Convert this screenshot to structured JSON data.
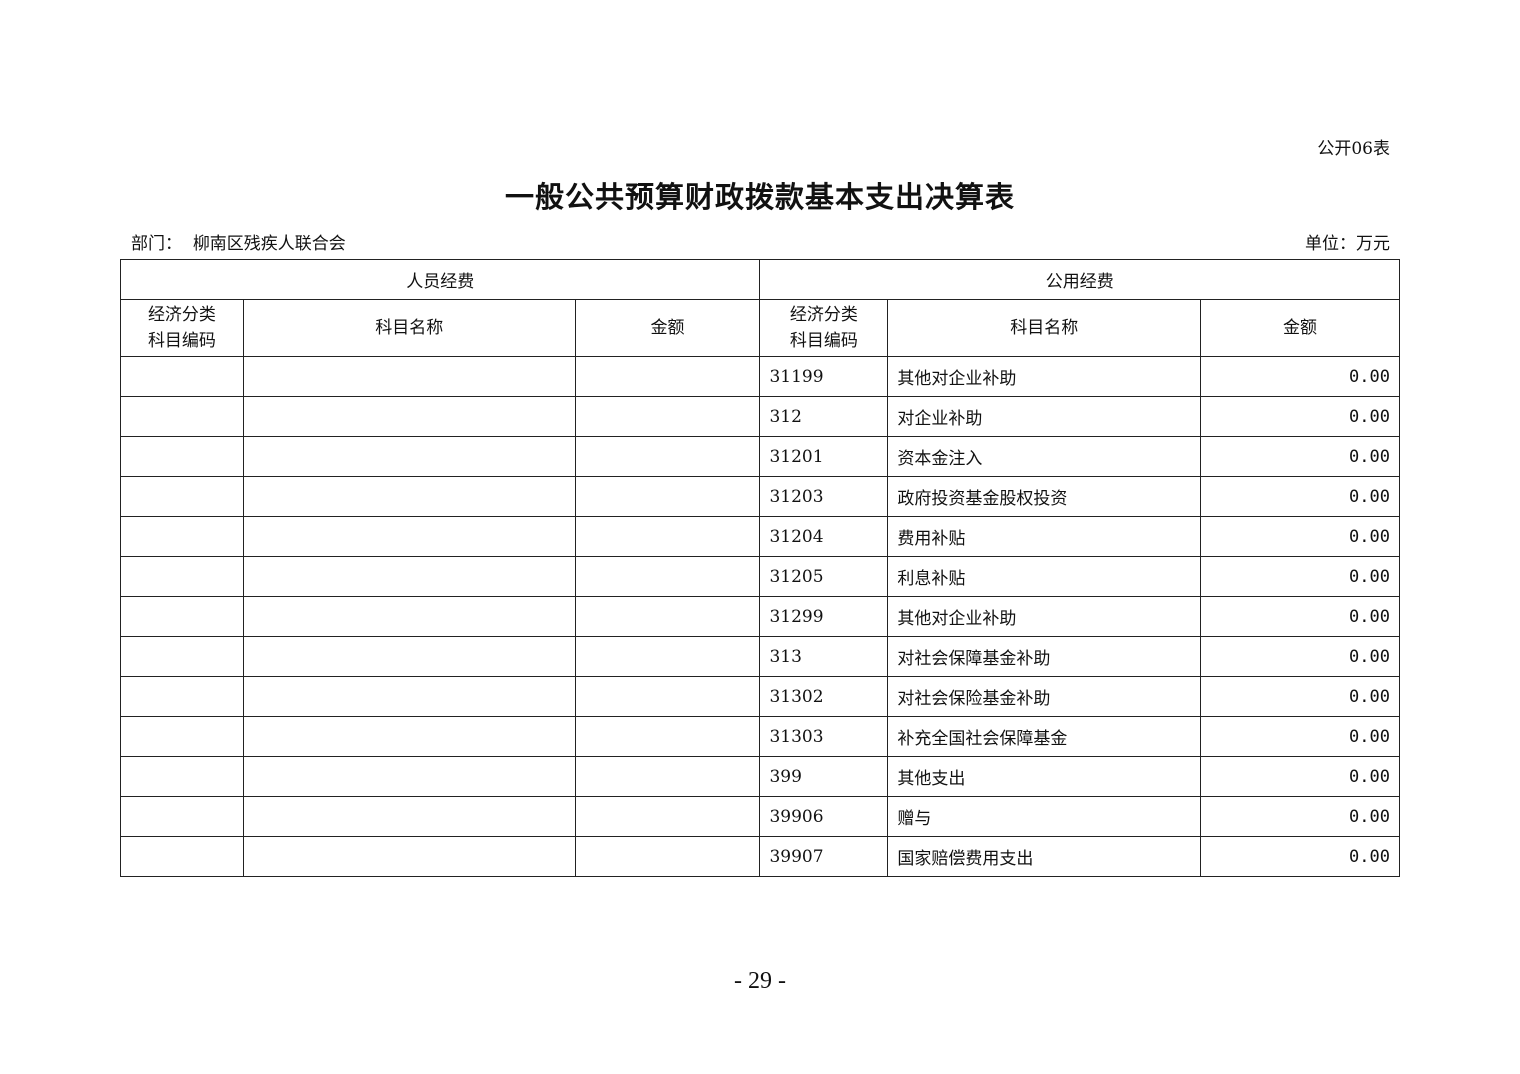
{
  "form_no": "公开06表",
  "title": "一般公共预算财政拨款基本支出决算表",
  "department_label": "部门：",
  "department": "柳南区残疾人联合会",
  "unit": "单位：万元",
  "table": {
    "group_headers": [
      "人员经费",
      "公用经费"
    ],
    "columns": [
      "经济分类\n科目编码",
      "科目名称",
      "金额",
      "经济分类\n科目编码",
      "科目名称",
      "金额"
    ],
    "rows": [
      {
        "code": "31199",
        "name": "其他对企业补助",
        "amount": "0.00"
      },
      {
        "code": "312",
        "name": "对企业补助",
        "amount": "0.00"
      },
      {
        "code": "31201",
        "name": "资本金注入",
        "amount": "0.00"
      },
      {
        "code": "31203",
        "name": "政府投资基金股权投资",
        "amount": "0.00"
      },
      {
        "code": "31204",
        "name": "费用补贴",
        "amount": "0.00"
      },
      {
        "code": "31205",
        "name": "利息补贴",
        "amount": "0.00"
      },
      {
        "code": "31299",
        "name": "其他对企业补助",
        "amount": "0.00"
      },
      {
        "code": "313",
        "name": "对社会保障基金补助",
        "amount": "0.00"
      },
      {
        "code": "31302",
        "name": "对社会保险基金补助",
        "amount": "0.00"
      },
      {
        "code": "31303",
        "name": "补充全国社会保障基金",
        "amount": "0.00"
      },
      {
        "code": "399",
        "name": "其他支出",
        "amount": "0.00"
      },
      {
        "code": "39906",
        "name": "赠与",
        "amount": "0.00"
      },
      {
        "code": "39907",
        "name": "国家赔偿费用支出",
        "amount": "0.00"
      }
    ]
  },
  "page_number": "- 29 -"
}
